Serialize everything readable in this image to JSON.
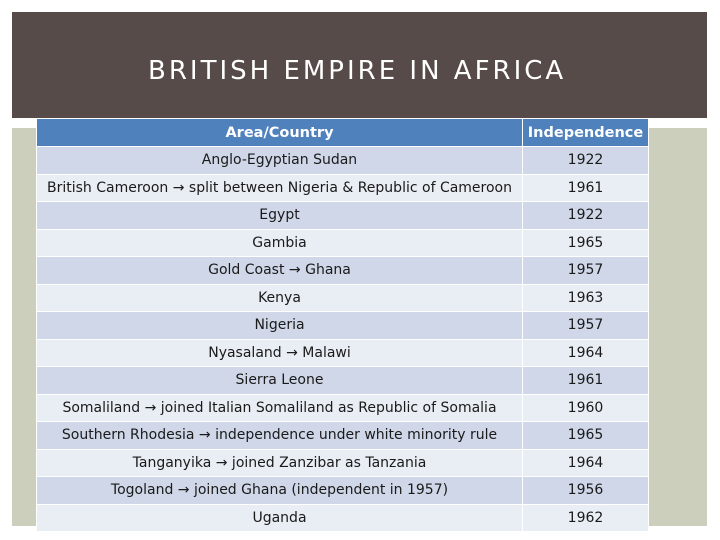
{
  "slide": {
    "title": "BRITISH EMPIRE IN AFRICA"
  },
  "table": {
    "headers": {
      "area": "Area/Country",
      "independence": "Independence"
    },
    "rows": [
      {
        "area": "Anglo-Egyptian Sudan",
        "year": "1922"
      },
      {
        "area": "British Cameroon → split between Nigeria & Republic of Cameroon",
        "year": "1961"
      },
      {
        "area": "Egypt",
        "year": "1922"
      },
      {
        "area": "Gambia",
        "year": "1965"
      },
      {
        "area": "Gold Coast → Ghana",
        "year": "1957"
      },
      {
        "area": "Kenya",
        "year": "1963"
      },
      {
        "area": "Nigeria",
        "year": "1957"
      },
      {
        "area": "Nyasaland → Malawi",
        "year": "1964"
      },
      {
        "area": "Sierra Leone",
        "year": "1961"
      },
      {
        "area": "Somaliland → joined Italian Somaliland as Republic of Somalia",
        "year": "1960"
      },
      {
        "area": "Southern Rhodesia → independence under white minority rule",
        "year": "1965"
      },
      {
        "area": "Tanganyika → joined Zanzibar as Tanzania",
        "year": "1964"
      },
      {
        "area": "Togoland → joined Ghana (independent in 1957)",
        "year": "1956"
      },
      {
        "area": "Uganda",
        "year": "1962"
      }
    ]
  },
  "colors": {
    "title_bar": "#564b48",
    "panel": "#cbcfbc",
    "header": "#4f81bd",
    "row_dark": "#cfd7e8",
    "row_light": "#e9edf4"
  }
}
